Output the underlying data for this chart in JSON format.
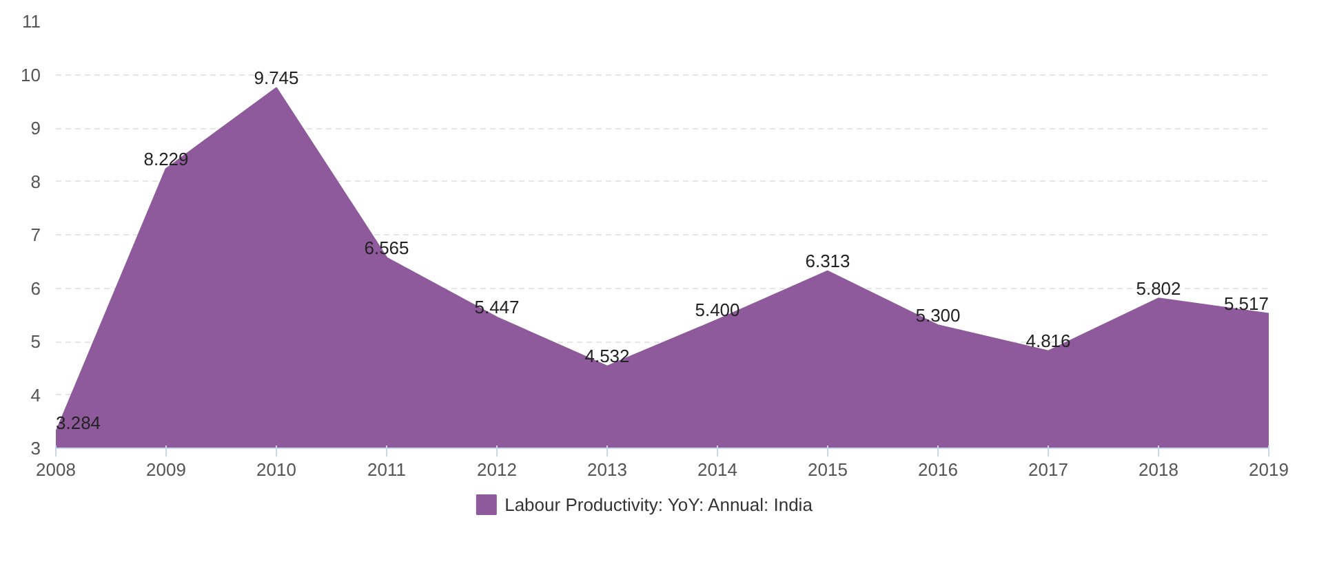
{
  "chart_data": {
    "type": "area",
    "x": [
      2008,
      2009,
      2010,
      2011,
      2012,
      2013,
      2014,
      2015,
      2016,
      2017,
      2018,
      2019
    ],
    "series": [
      {
        "name": "Labour Productivity: YoY: Annual: India",
        "color": "#8e5a9b",
        "values": [
          3.284,
          8.229,
          9.745,
          6.565,
          5.447,
          4.532,
          5.4,
          6.313,
          5.3,
          4.816,
          5.802,
          5.517
        ],
        "value_labels": [
          "3.284",
          "8.229",
          "9.745",
          "6.565",
          "5.447",
          "4.532",
          "5.400",
          "6.313",
          "5.300",
          "4.816",
          "5.802",
          "5.517"
        ]
      }
    ],
    "xlim": [
      2008,
      2019
    ],
    "xticks": [
      2008,
      2009,
      2010,
      2011,
      2012,
      2013,
      2014,
      2015,
      2016,
      2017,
      2018,
      2019
    ],
    "ylim": [
      3,
      11
    ],
    "yticks": [
      3,
      4,
      5,
      6,
      7,
      8,
      9,
      10,
      11
    ],
    "grid": "y",
    "legend": "bottom"
  }
}
